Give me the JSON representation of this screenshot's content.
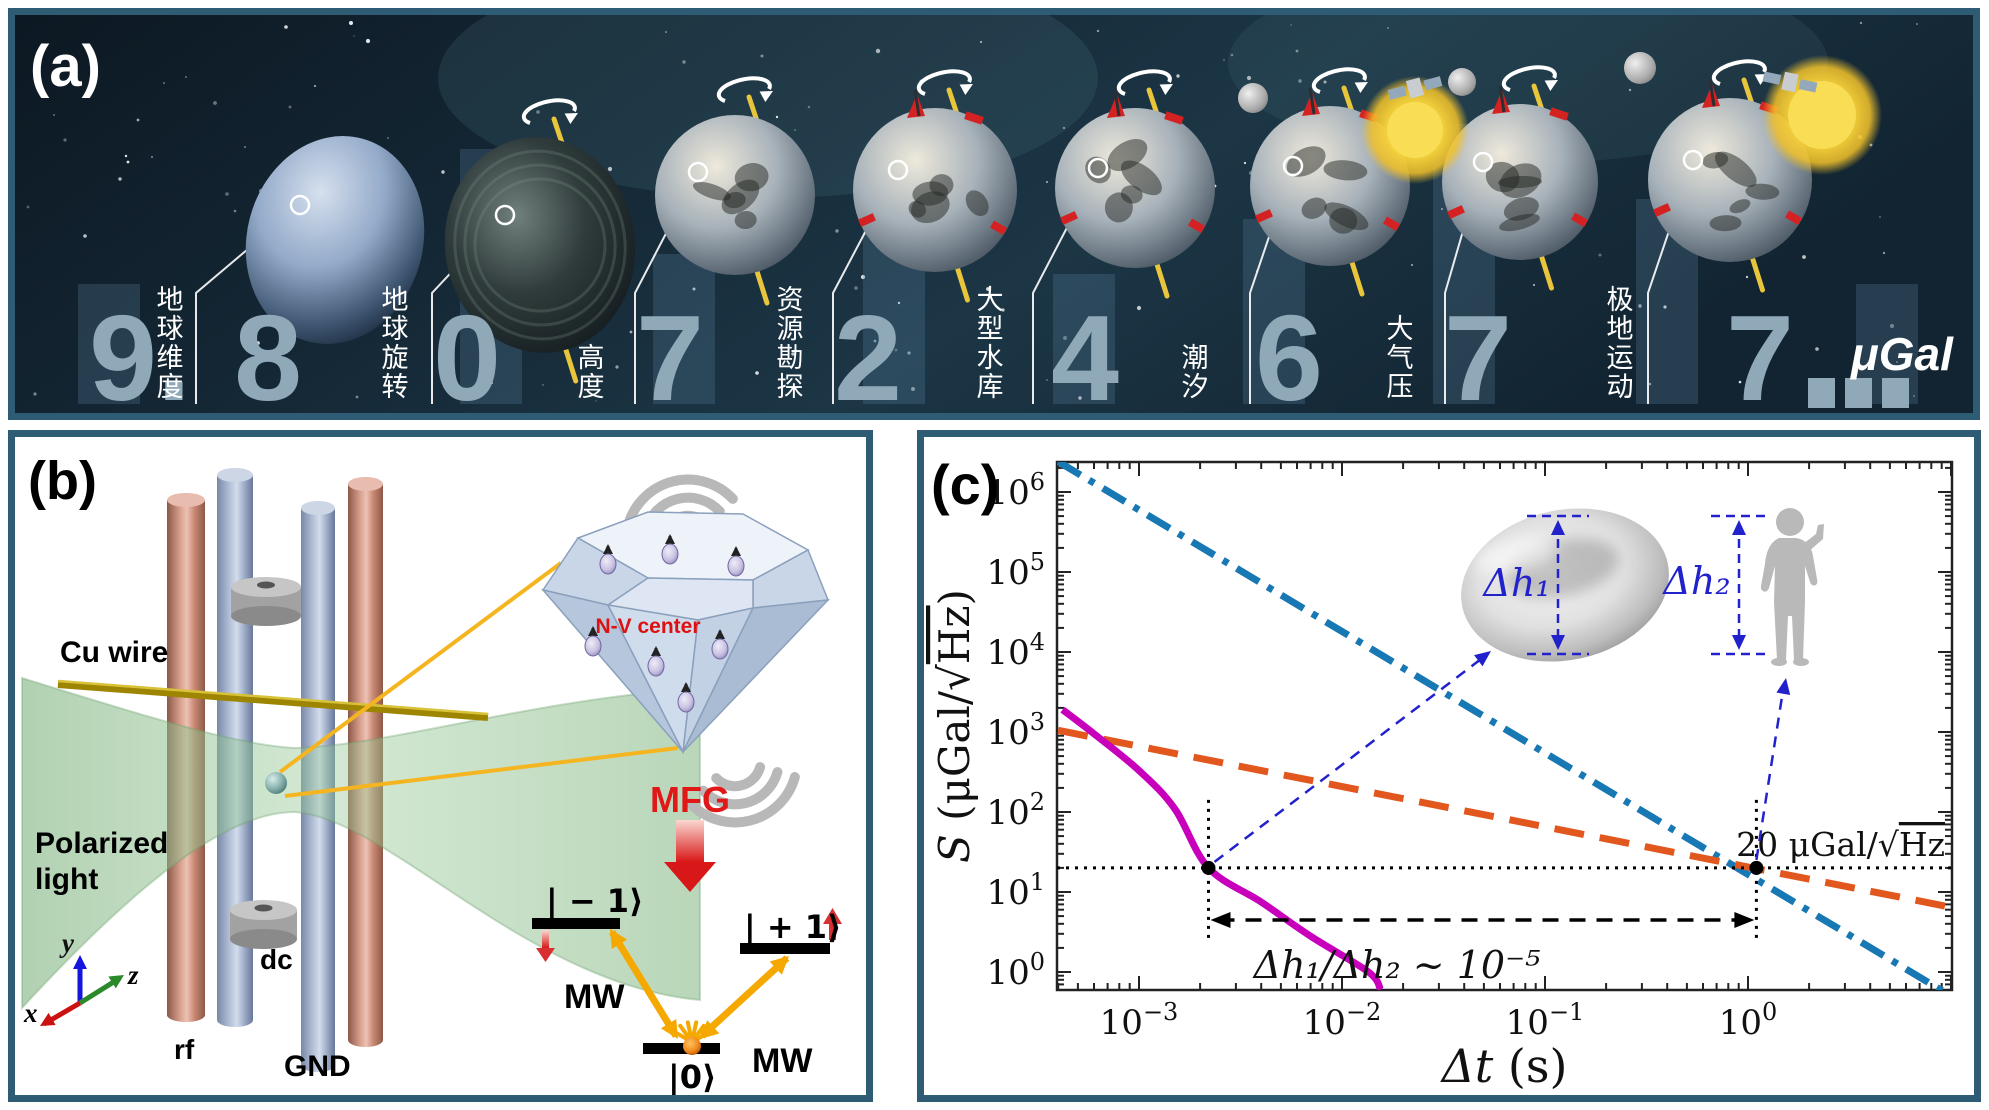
{
  "colors": {
    "panel_border": "#2d5c74",
    "space_bg": "#14222e",
    "digit": "#8fa9b9",
    "label_white": "#ffffff",
    "magenta": "#c800bb",
    "orange": "#e2571d",
    "blue_line": "#1878b4",
    "annotation_blue": "#2222cc",
    "nv_red": "#dd1111",
    "mfg_red": "#e01818",
    "mw_yellow": "#f5a800",
    "cu_wire_yellow": "#a08a00",
    "rod_salmon": "#d9a08e",
    "rod_blue": "#b8c4da",
    "beam_green": "#8cbe8c"
  },
  "panel_a": {
    "label": "(a)",
    "unit": "μGal",
    "digits": [
      "9.",
      "8",
      "0",
      "7",
      "2",
      "4",
      "6",
      "7",
      "7"
    ],
    "trailing_dots": 3,
    "factors": [
      "地球维度",
      "地球旋转",
      "高度",
      "资源勘探",
      "大型水库",
      "潮汐",
      "大气压",
      "极地运动"
    ]
  },
  "panel_b": {
    "label": "(b)",
    "cu_wire": "Cu wire",
    "polarized_light_line1": "Polarized",
    "polarized_light_line2": "light",
    "rf": "rf",
    "gnd": "GND",
    "dc": "dc",
    "nv_center": "N-V center",
    "mfg": "MFG",
    "mw_left": "MW",
    "mw_right": "MW",
    "level_minus1": "| − 1⟩",
    "level_plus1": "| + 1⟩",
    "level_0": "|0⟩",
    "axis_x": "x",
    "axis_y": "y",
    "axis_z": "z"
  },
  "panel_c": {
    "label": "(c)"
  },
  "chart_data": {
    "type": "line",
    "x_scale": "log",
    "y_scale": "log",
    "xlim": [
      0.0004,
      10.1
    ],
    "ylim": [
      0.6,
      2400000
    ],
    "xlabel_italic": "Δt",
    "xlabel_rest": " (s)",
    "ylabel_italic": "S",
    "ylabel_pre": " (μGal/√",
    "ylabel_overline": "Hz",
    "ylabel_post": ")",
    "x_ticks": [
      {
        "v": 0.001,
        "exp": "−3"
      },
      {
        "v": 0.01,
        "exp": "−2"
      },
      {
        "v": 0.1,
        "exp": "−1"
      },
      {
        "v": 1.0,
        "exp": "0"
      }
    ],
    "y_ticks": [
      {
        "v": 1,
        "exp": "0"
      },
      {
        "v": 10,
        "exp": "1"
      },
      {
        "v": 100,
        "exp": "2"
      },
      {
        "v": 1000,
        "exp": "3"
      },
      {
        "v": 10000,
        "exp": "4"
      },
      {
        "v": 100000,
        "exp": "5"
      },
      {
        "v": 1000000,
        "exp": "6"
      }
    ],
    "grid": false,
    "legend": "none",
    "series": [
      {
        "name": "blue-dashdot-line",
        "color": "#1878b4",
        "style": "dashdot",
        "width": 7,
        "points": [
          [
            0.0004,
            2400000
          ],
          [
            9.3,
            0.56
          ]
        ]
      },
      {
        "name": "orange-dashed-line",
        "color": "#e2571d",
        "style": "dashed",
        "width": 7,
        "points": [
          [
            0.0004,
            1050
          ],
          [
            10.5,
            6.3
          ]
        ]
      },
      {
        "name": "magenta-solid-curve",
        "color": "#c800bb",
        "style": "solid",
        "width": 7,
        "smooth": true,
        "points": [
          [
            0.00042,
            1900
          ],
          [
            0.0006,
            950
          ],
          [
            0.001,
            330
          ],
          [
            0.0015,
            110
          ],
          [
            0.0022,
            20
          ],
          [
            0.004,
            7.5
          ],
          [
            0.007,
            2.8
          ],
          [
            0.0135,
            1.0
          ],
          [
            0.0155,
            0.6
          ]
        ]
      }
    ],
    "annotations": {
      "sensitivity_value": 20,
      "sensitivity_label_pre": "20 μGal/√",
      "sensitivity_label_overline": "Hz",
      "marker_points": [
        [
          0.0022,
          20
        ],
        [
          1.1,
          20
        ]
      ],
      "ratio_label": "Δh₁/Δh₂ ~ 10⁻⁵",
      "dh1_label": "Δh₁",
      "dh2_label": "Δh₂"
    }
  }
}
